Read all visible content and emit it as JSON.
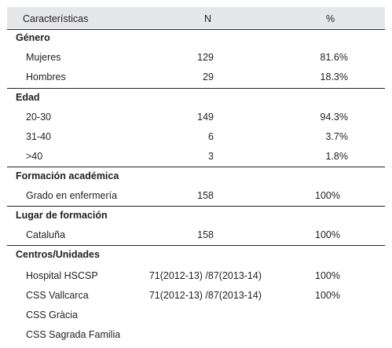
{
  "header": {
    "col_characteristics": "Características",
    "col_n": "N",
    "col_percent": "%"
  },
  "sections": [
    {
      "title": "Género",
      "rows": [
        {
          "label": "Mujeres",
          "n": "129",
          "percent": "81.6%"
        },
        {
          "label": "Hombres",
          "n": "29",
          "percent": "18.3%"
        }
      ]
    },
    {
      "title": "Edad",
      "rows": [
        {
          "label": "20-30",
          "n": "149",
          "percent": "94.3%"
        },
        {
          "label": "31-40",
          "n": "6",
          "percent": "3.7%"
        },
        {
          "label": ">40",
          "n": "3",
          "percent": "1.8%"
        }
      ]
    },
    {
      "title": "Formación académica",
      "rows": [
        {
          "label": "Grado en enfermería",
          "n": "158",
          "percent": "100%"
        }
      ]
    },
    {
      "title": "Lugar de formación",
      "rows": [
        {
          "label": "Cataluña",
          "n": "158",
          "percent": "100%"
        }
      ]
    },
    {
      "title": "Centros/Unidades",
      "rows": [
        {
          "label": "Hospital HSCSP",
          "n": "71(2012-13) /87(2013-14)",
          "percent": "100%"
        },
        {
          "label": "CSS Vallcarca",
          "n": "71(2012-13) /87(2013-14)",
          "percent": "100%"
        },
        {
          "label": "CSS Gràcia",
          "n": "",
          "percent": ""
        },
        {
          "label": "CSS Sagrada Familia",
          "n": "",
          "percent": ""
        }
      ]
    }
  ]
}
